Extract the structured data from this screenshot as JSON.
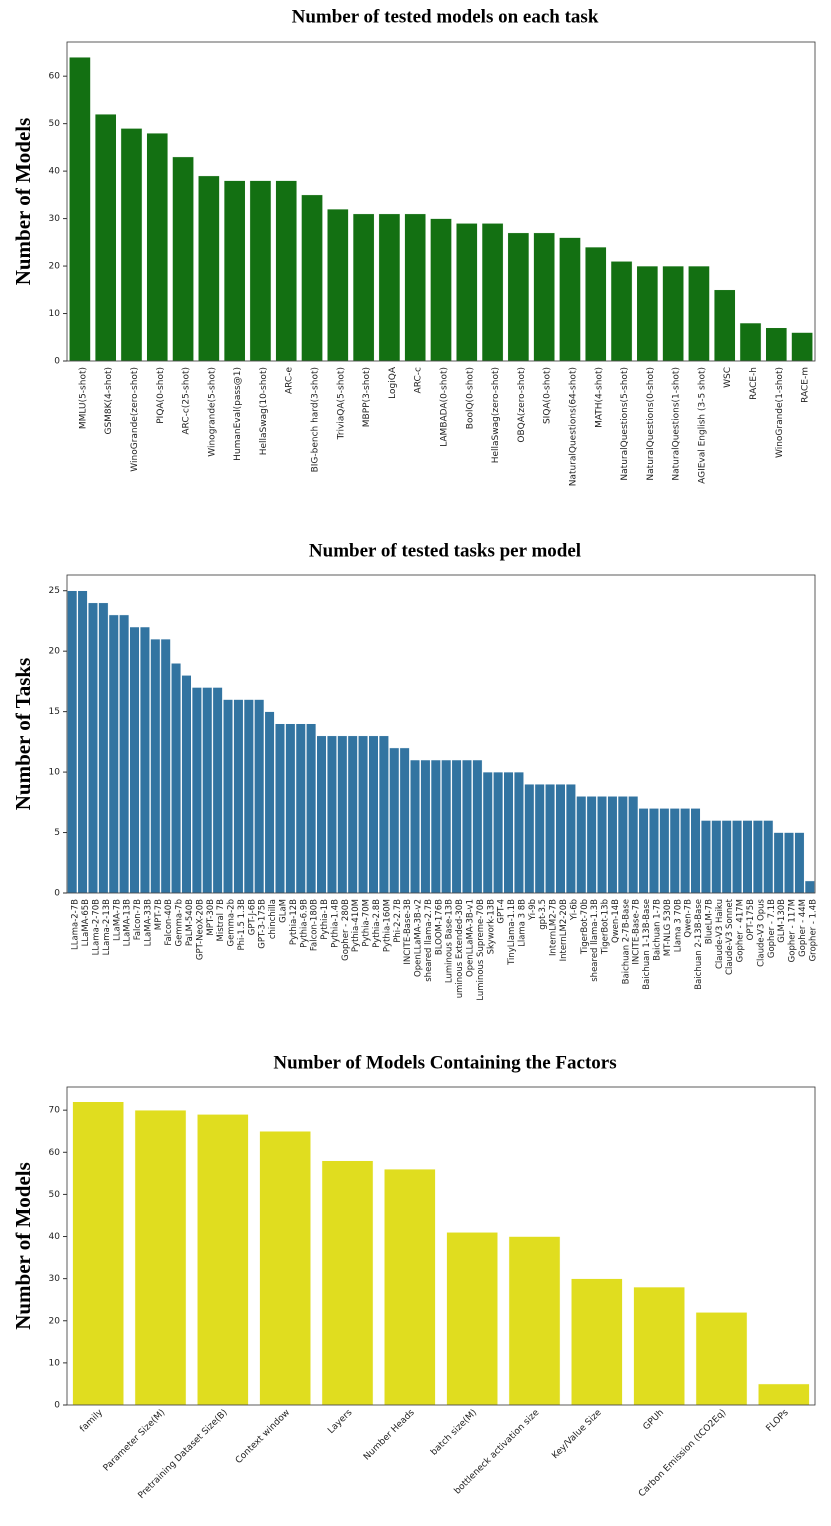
{
  "chart_data": [
    {
      "type": "bar",
      "title": "Number of tested models on each task",
      "ylabel": "Number of Models",
      "color": "#137012",
      "categories": [
        "MMLU(5-shot)",
        "GSM8K(4-shot)",
        "WinoGrande(zero-shot)",
        "PIQA(0-shot)",
        "ARC-c(25-shot)",
        "Winogrande(5-shot)",
        "HumanEval(pass@1)",
        "HellaSwag(10-shot)",
        "ARC-e",
        "BIG-bench hard(3-shot)",
        "TriviaQA(5-shot)",
        "MBPP(3-shot)",
        "LogiQA",
        "ARC-c",
        "LAMBADA(0-shot)",
        "BoolQ(0-shot)",
        "HellaSwag(zero-shot)",
        "OBQA(zero-shot)",
        "SIQA(0-shot)",
        "NaturalQuestions(64-shot)",
        "MATH(4-shot)",
        "NaturalQuestions(5-shot)",
        "NaturalQuestions(0-shot)",
        "NaturalQuestions(1-shot)",
        "AGIEval English (3-5 shot)",
        "WSC",
        "RACE-h",
        "WinoGrande(1-shot)",
        "RACE-m"
      ],
      "values": [
        64,
        52,
        49,
        48,
        43,
        39,
        38,
        38,
        38,
        35,
        32,
        31,
        31,
        31,
        30,
        29,
        29,
        27,
        27,
        26,
        24,
        21,
        20,
        20,
        20,
        15,
        8,
        7,
        6
      ],
      "ylim": [
        0,
        67.2
      ],
      "yticks": [
        0,
        10,
        20,
        30,
        40,
        50,
        60
      ]
    },
    {
      "type": "bar",
      "title": "Number of tested tasks per model",
      "ylabel": "Number of Tasks",
      "color": "#3274a1",
      "categories": [
        "LLama-2-7B",
        "LLaMA-65B",
        "LLama-2-70B",
        "LLama-2-13B",
        "LLaMA-7B",
        "LLaMA-13B",
        "Falcon-7B",
        "LLaMA-33B",
        "MPT-7B",
        "Falcon-40B",
        "Gemma-7b",
        "PaLM-540B",
        "GPT-NeoX-20B",
        "MPT-30B",
        "Mistral 7B",
        "Gemma-2b",
        "Phi-1.5 1.3B",
        "GPT-J-6B",
        "GPT-3-175B",
        "chinchilla",
        "GLaM",
        "Pythia-12B",
        "Pythia-6.9B",
        "Falcon-180B",
        "Pythia-1B",
        "Pythia-1.4B",
        "Gopher - 280B",
        "Pythia-410M",
        "Pythia-70M",
        "Pythia-2.8B",
        "Pythia-160M",
        "Phi-2-2.7B",
        "INCITE-Base-3B",
        "OpenLLaMA-3B-v2",
        "sheared llama-2.7B",
        "BLOOM-176B",
        "Luminous Base-13B",
        "uminous Extended-30B",
        "OpenLLaMA-3B-v1",
        "Luminous Supreme-70B",
        "Skywork-13B",
        "GPT-4",
        "TinyLlama-1.1B",
        "Llama 3 8B",
        "Yi-9b",
        "gpt-3.5",
        "InternLM2-7B",
        "InternLM2-20B",
        "Yi-6b",
        "TigerBot-70b",
        "sheared llama-1.3B",
        "TigerBot-13b",
        "Qwen-14B",
        "Baichuan 2-7B-Base",
        "INCITE-Base-7B",
        "Baichuan 1-13B-Base",
        "Baichuan 1-7B",
        "MT-NLG 530B",
        "Llama 3 70B",
        "Qwen-7B",
        "Baichuan 2-13B-Base",
        "BlueLM-7B",
        "Claude-V3 Haiku",
        "Claude-V3 Sonnet",
        "Gopher - 417M",
        "OPT-175B",
        "Claude-V3 Opus",
        "Gopher - 7.1B",
        "GLM-130B",
        "Gopher - 117M",
        "Gopher - 44M",
        "Gropher - 1.4B"
      ],
      "values": [
        25,
        25,
        24,
        24,
        23,
        23,
        22,
        22,
        21,
        21,
        19,
        18,
        17,
        17,
        17,
        16,
        16,
        16,
        16,
        15,
        14,
        14,
        14,
        14,
        13,
        13,
        13,
        13,
        13,
        13,
        13,
        12,
        12,
        11,
        11,
        11,
        11,
        11,
        11,
        11,
        10,
        10,
        10,
        10,
        9,
        9,
        9,
        9,
        9,
        8,
        8,
        8,
        8,
        8,
        8,
        7,
        7,
        7,
        7,
        7,
        7,
        6,
        6,
        6,
        6,
        6,
        6,
        6,
        5,
        5,
        5,
        1
      ],
      "ylim": [
        0,
        26.3
      ],
      "yticks": [
        0,
        5,
        10,
        15,
        20,
        25
      ]
    },
    {
      "type": "bar",
      "title": "Number of Models Containing the Factors",
      "ylabel": "Number of Models",
      "color": "#e0dd1f",
      "categories": [
        "family",
        "Parameter Size(M)",
        "Pretraining Dataset Size(B)",
        "Context window",
        "Layers",
        "Number Heads",
        "batch size(M)",
        "bottleneck activation size",
        "Key/Value Size",
        "GPUh",
        "Carbon Emission (tCO2Eq)",
        "FLOPs"
      ],
      "values": [
        72,
        70,
        69,
        65,
        58,
        56,
        41,
        40,
        30,
        28,
        22,
        5
      ],
      "ylim": [
        0,
        75.5
      ],
      "yticks": [
        0,
        10,
        20,
        30,
        40,
        50,
        60,
        70
      ]
    }
  ]
}
